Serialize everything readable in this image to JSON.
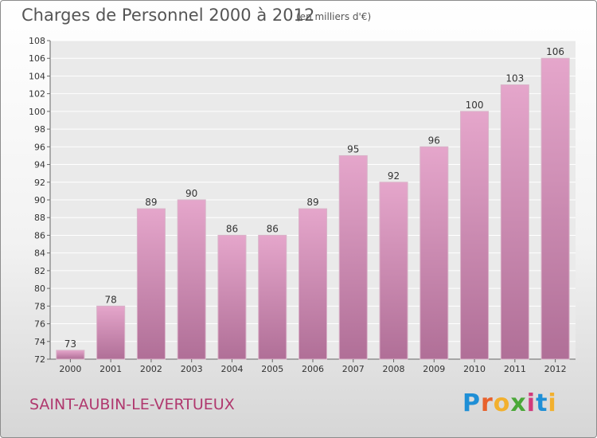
{
  "header": {
    "title": "Charges de Personnel 2000 à 2012",
    "unit": "(en milliers d'€)"
  },
  "footer": {
    "place": "SAINT-AUBIN-LE-VERTUEUX",
    "logo_letters": [
      "P",
      "r",
      "o",
      "x",
      "i",
      "t",
      "i"
    ],
    "logo_colors": [
      "#1f8fd6",
      "#e8612c",
      "#f2b02e",
      "#4aa838",
      "#d13a7c",
      "#1f8fd6",
      "#f2b02e"
    ]
  },
  "colors": {
    "bar_light": "#e5a6cb",
    "bar_dark": "#b06f97",
    "plot_bg": "#eaeaea",
    "grid": "#ffffff",
    "text": "#333333"
  },
  "chart_data": {
    "type": "bar",
    "categories": [
      "2000",
      "2001",
      "2002",
      "2003",
      "2004",
      "2005",
      "2006",
      "2007",
      "2008",
      "2009",
      "2010",
      "2011",
      "2012"
    ],
    "values": [
      73,
      78,
      89,
      90,
      86,
      86,
      89,
      95,
      92,
      96,
      100,
      103,
      106
    ],
    "title": "Charges de Personnel 2000 à 2012",
    "subtitle": "(en milliers d'€)",
    "xlabel": "",
    "ylabel": "",
    "ylim": [
      72,
      108
    ],
    "yticks": [
      72,
      74,
      76,
      78,
      80,
      82,
      84,
      86,
      88,
      90,
      92,
      94,
      96,
      98,
      100,
      102,
      104,
      106,
      108
    ],
    "grid": true
  }
}
